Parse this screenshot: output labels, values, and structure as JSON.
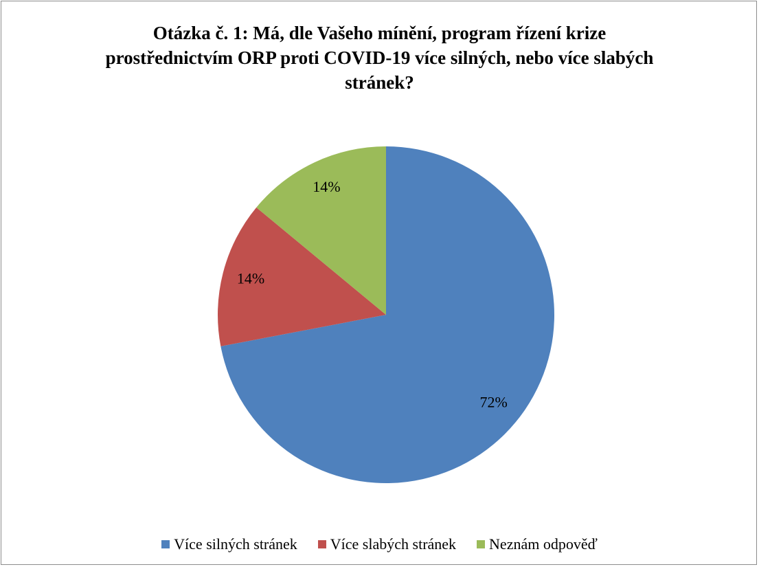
{
  "chart_data": {
    "type": "pie",
    "title": "Otázka č. 1: Má, dle Vašeho mínění, program řízení krize prostřednictvím ORP proti COVID-19 více silných, nebo více slabých stránek?",
    "categories": [
      "Více silných stránek",
      "Více slabých stránek",
      "Neznám odpověď"
    ],
    "values": [
      72,
      14,
      14
    ],
    "value_labels": [
      "72%",
      "14%",
      "14%"
    ],
    "colors": [
      "#4f81bd",
      "#c0504d",
      "#9bbb59"
    ],
    "legend": "bottom"
  }
}
